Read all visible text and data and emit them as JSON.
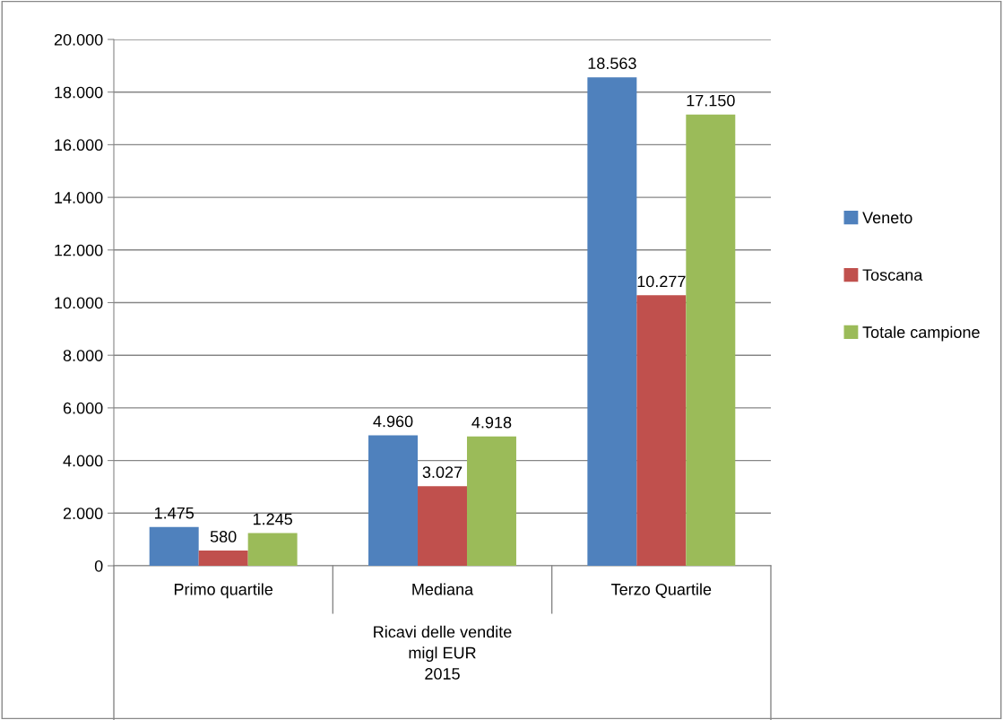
{
  "chart_data": {
    "type": "bar",
    "categories": [
      "Primo quartile",
      "Mediana",
      "Terzo Quartile"
    ],
    "xlabel": "Ricavi delle vendite\nmigl EUR\n2015",
    "series": [
      {
        "name": "Veneto",
        "color": "#4f81bd",
        "values": [
          1475,
          4960,
          18563
        ],
        "value_labels": [
          "1.475",
          "4.960",
          "18.563"
        ]
      },
      {
        "name": "Toscana",
        "color": "#c0504d",
        "values": [
          580,
          3027,
          10277
        ],
        "value_labels": [
          "580",
          "3.027",
          "10.277"
        ]
      },
      {
        "name": "Totale campione",
        "color": "#9bbb59",
        "values": [
          1245,
          4918,
          17150
        ],
        "value_labels": [
          "1.245",
          "4.918",
          "17.150"
        ]
      }
    ],
    "ylim": [
      0,
      20000
    ],
    "yticks": [
      {
        "value": 0,
        "label": "0"
      },
      {
        "value": 2000,
        "label": "2.000"
      },
      {
        "value": 4000,
        "label": "4.000"
      },
      {
        "value": 6000,
        "label": "6.000"
      },
      {
        "value": 8000,
        "label": "8.000"
      },
      {
        "value": 10000,
        "label": "10.000"
      },
      {
        "value": 12000,
        "label": "12.000"
      },
      {
        "value": 14000,
        "label": "14.000"
      },
      {
        "value": 16000,
        "label": "16.000"
      },
      {
        "value": 18000,
        "label": "18.000"
      },
      {
        "value": 20000,
        "label": "20.000"
      }
    ],
    "grid": "y",
    "legend": "right"
  }
}
